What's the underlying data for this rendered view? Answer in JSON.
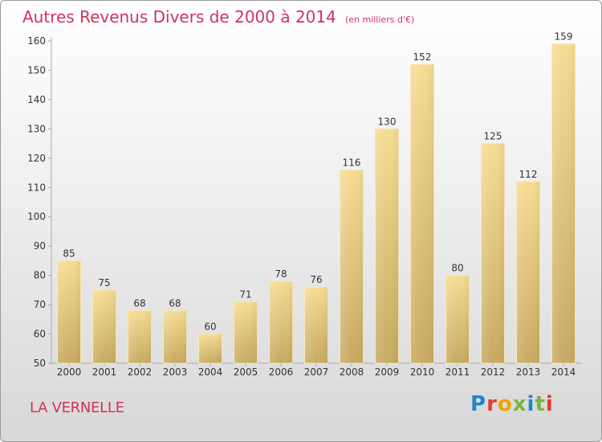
{
  "chart_data": {
    "type": "bar",
    "title": "Autres Revenus Divers de 2000 à 2014",
    "unit": "(en milliers d'€)",
    "categories": [
      "2000",
      "2001",
      "2002",
      "2003",
      "2004",
      "2005",
      "2006",
      "2007",
      "2008",
      "2009",
      "2010",
      "2011",
      "2012",
      "2013",
      "2014"
    ],
    "values": [
      85,
      75,
      68,
      68,
      60,
      71,
      78,
      76,
      116,
      130,
      152,
      80,
      125,
      112,
      159
    ],
    "ylim": [
      50,
      160
    ],
    "yticks": [
      50,
      60,
      70,
      80,
      90,
      100,
      110,
      120,
      130,
      140,
      150,
      160
    ],
    "xlabel": "",
    "ylabel": "",
    "grid": false
  },
  "footer": {
    "commune": "LA VERNELLE",
    "logo_text": "Proxiti"
  },
  "colors": {
    "title": "#d1335a",
    "bar_top": "#f6dc93",
    "bar_bottom": "#c7aa62",
    "logo_letters": [
      "#1e88c8",
      "#e53935",
      "#f5a100",
      "#7cb342",
      "#1e88c8",
      "#7cb342",
      "#e53935"
    ]
  }
}
